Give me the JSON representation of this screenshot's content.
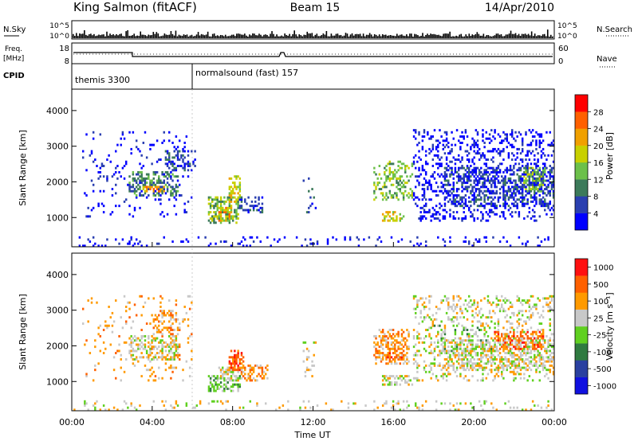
{
  "header": {
    "station": "King Salmon (fitACF)",
    "beam": "Beam 15",
    "date": "14/Apr/2010"
  },
  "sky_panel": {
    "left_label": "N.Sky",
    "right_label": "N.Search",
    "yticks": [
      "10^5",
      "10^0"
    ]
  },
  "freq_panel": {
    "left_label_1": "Freq.",
    "left_label_2": "[MHz]",
    "right_label": "Nave",
    "left_ticks": [
      "18",
      "8"
    ],
    "right_ticks": [
      "60",
      "0"
    ]
  },
  "cpid": {
    "label": "CPID",
    "programs": [
      {
        "name": "themis 3300",
        "start_hour": 0
      },
      {
        "name": "normalsound (fast) 157",
        "start_hour": 6
      }
    ]
  },
  "colors": {
    "power_scale": [
      "#0000ff",
      "#2a3fb0",
      "#3c7a5a",
      "#6cc04a",
      "#c8d000",
      "#f0a000",
      "#ff6000",
      "#ff0000"
    ],
    "velocity_scale": [
      "#1010e0",
      "#2a40a0",
      "#2f7a40",
      "#60d020",
      "#c8c8c8",
      "#ff9a00",
      "#ff6000",
      "#ff1010"
    ]
  },
  "chart_data": [
    {
      "type": "heatmap",
      "name": "power",
      "ylabel": "Slant Range [km]",
      "colorbar_label": "Power [dB]",
      "colorbar_ticks": [
        "28",
        "24",
        "20",
        "16",
        "12",
        "8",
        "4"
      ],
      "xlim": [
        0,
        24
      ],
      "ylim": [
        180,
        4600
      ],
      "yticks": [
        1000,
        2000,
        3000,
        4000
      ],
      "bands": [
        {
          "t0": 0.0,
          "t1": 24.0,
          "r0": 200,
          "r1": 500,
          "density": 0.1,
          "level": 0
        },
        {
          "t0": 0.5,
          "t1": 6.0,
          "r0": 1000,
          "r1": 3400,
          "density": 0.07,
          "level": 0
        },
        {
          "t0": 2.8,
          "t1": 5.3,
          "r0": 1600,
          "r1": 2300,
          "density": 0.45,
          "level": 2
        },
        {
          "t0": 3.5,
          "t1": 4.6,
          "r0": 1700,
          "r1": 1900,
          "density": 0.45,
          "level": 5
        },
        {
          "t0": 4.6,
          "t1": 6.2,
          "r0": 2300,
          "r1": 2900,
          "density": 0.35,
          "level": 1
        },
        {
          "t0": 6.8,
          "t1": 8.3,
          "r0": 800,
          "r1": 1600,
          "density": 0.5,
          "level": 3
        },
        {
          "t0": 7.3,
          "t1": 8.0,
          "r0": 900,
          "r1": 1300,
          "density": 0.5,
          "level": 5
        },
        {
          "t0": 7.8,
          "t1": 8.4,
          "r0": 1400,
          "r1": 2200,
          "density": 0.45,
          "level": 4
        },
        {
          "t0": 8.3,
          "t1": 9.5,
          "r0": 1100,
          "r1": 1600,
          "density": 0.3,
          "level": 1
        },
        {
          "t0": 11.5,
          "t1": 12.2,
          "r0": 1100,
          "r1": 2100,
          "density": 0.1,
          "level": 1
        },
        {
          "t0": 15.0,
          "t1": 17.0,
          "r0": 1500,
          "r1": 2600,
          "density": 0.35,
          "level": 3
        },
        {
          "t0": 15.4,
          "t1": 16.5,
          "r0": 900,
          "r1": 1200,
          "density": 0.45,
          "level": 4
        },
        {
          "t0": 17.0,
          "t1": 24.0,
          "r0": 900,
          "r1": 3500,
          "density": 0.22,
          "level": 0
        },
        {
          "t0": 18.5,
          "t1": 24.0,
          "r0": 1300,
          "r1": 2400,
          "density": 0.35,
          "level": 1
        },
        {
          "t0": 22.5,
          "t1": 23.6,
          "r0": 1700,
          "r1": 2400,
          "density": 0.4,
          "level": 3
        }
      ]
    },
    {
      "type": "heatmap",
      "name": "velocity",
      "ylabel": "Slant Range [km]",
      "xlabel": "Time UT",
      "colorbar_label": "Velocity [m s⁻¹]",
      "colorbar_ticks": [
        "1000",
        "500",
        "100",
        "25",
        "-25",
        "-100",
        "-500",
        "-1000"
      ],
      "xlim": [
        0,
        24
      ],
      "xticks": [
        "00:00",
        "04:00",
        "08:00",
        "12:00",
        "16:00",
        "20:00",
        "00:00"
      ],
      "ylim": [
        180,
        4600
      ],
      "yticks": [
        1000,
        2000,
        3000,
        4000
      ],
      "bands": [
        {
          "t0": 0.0,
          "t1": 24.0,
          "r0": 200,
          "r1": 500,
          "density": 0.1,
          "level": 4
        },
        {
          "t0": 0.5,
          "t1": 6.0,
          "r0": 1000,
          "r1": 3400,
          "density": 0.06,
          "level": 5
        },
        {
          "t0": 2.8,
          "t1": 5.3,
          "r0": 1600,
          "r1": 2300,
          "density": 0.45,
          "level": 4
        },
        {
          "t0": 4.0,
          "t1": 5.5,
          "r0": 2300,
          "r1": 3000,
          "density": 0.3,
          "level": 5
        },
        {
          "t0": 6.8,
          "t1": 8.4,
          "r0": 700,
          "r1": 1200,
          "density": 0.45,
          "level": 3
        },
        {
          "t0": 7.3,
          "t1": 8.4,
          "r0": 1000,
          "r1": 1400,
          "density": 0.45,
          "level": 4
        },
        {
          "t0": 7.8,
          "t1": 8.6,
          "r0": 1300,
          "r1": 1900,
          "density": 0.5,
          "level": 6
        },
        {
          "t0": 8.4,
          "t1": 9.8,
          "r0": 1000,
          "r1": 1500,
          "density": 0.45,
          "level": 5
        },
        {
          "t0": 11.5,
          "t1": 12.2,
          "r0": 1100,
          "r1": 2100,
          "density": 0.1,
          "level": 4
        },
        {
          "t0": 15.0,
          "t1": 16.8,
          "r0": 1500,
          "r1": 2500,
          "density": 0.4,
          "level": 5
        },
        {
          "t0": 15.5,
          "t1": 16.5,
          "r0": 1600,
          "r1": 2000,
          "density": 0.4,
          "level": 6
        },
        {
          "t0": 15.4,
          "t1": 17.0,
          "r0": 900,
          "r1": 1200,
          "density": 0.4,
          "level": 4
        },
        {
          "t0": 17.0,
          "t1": 24.0,
          "r0": 1000,
          "r1": 3400,
          "density": 0.2,
          "level": 4
        },
        {
          "t0": 18.5,
          "t1": 24.0,
          "r0": 1300,
          "r1": 2200,
          "density": 0.4,
          "level": 4
        },
        {
          "t0": 21.0,
          "t1": 23.5,
          "r0": 1900,
          "r1": 2400,
          "density": 0.4,
          "level": 6
        },
        {
          "t0": 18.0,
          "t1": 21.0,
          "r0": 1800,
          "r1": 2600,
          "density": 0.12,
          "level": 3
        }
      ]
    }
  ]
}
